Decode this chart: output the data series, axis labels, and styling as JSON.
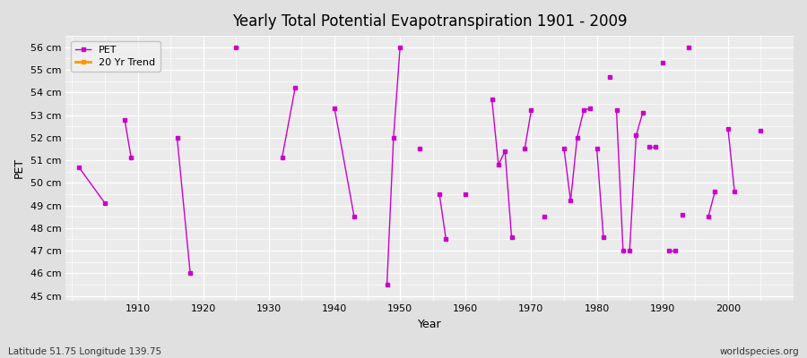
{
  "title": "Yearly Total Potential Evapotranspiration 1901 - 2009",
  "xlabel": "Year",
  "ylabel": "PET",
  "footnote_left": "Latitude 51.75 Longitude 139.75",
  "footnote_right": "worldspecies.org",
  "ylim": [
    44.8,
    56.5
  ],
  "yticks": [
    45,
    46,
    47,
    48,
    49,
    50,
    51,
    52,
    53,
    54,
    55,
    56
  ],
  "ytick_labels": [
    "45 cm",
    "46 cm",
    "47 cm",
    "48 cm",
    "49 cm",
    "50 cm",
    "51 cm",
    "52 cm",
    "53 cm",
    "54 cm",
    "55 cm",
    "56 cm"
  ],
  "xlim": [
    1899,
    2010
  ],
  "xticks": [
    1910,
    1920,
    1930,
    1940,
    1950,
    1960,
    1970,
    1980,
    1990,
    2000
  ],
  "pet_color": "#cc00cc",
  "trend_color": "#ff9900",
  "bg_color": "#e0e0e0",
  "plot_bg": "#ebebeb",
  "grid_color": "#ffffff",
  "legend_bg": "#f0f0f0",
  "pet_data": {
    "years": [
      1901,
      1905,
      1908,
      1909,
      1916,
      1918,
      1925,
      1932,
      1934,
      1940,
      1943,
      1948,
      1949,
      1950,
      1953,
      1956,
      1957,
      1960,
      1964,
      1965,
      1966,
      1967,
      1969,
      1970,
      1972,
      1975,
      1976,
      1977,
      1978,
      1979,
      1980,
      1981,
      1982,
      1983,
      1984,
      1985,
      1986,
      1987,
      1988,
      1989,
      1990,
      1991,
      1992,
      1993,
      1994,
      1997,
      1998,
      2000,
      2001,
      2005
    ],
    "values": [
      50.7,
      49.1,
      52.8,
      51.1,
      52.0,
      46.0,
      56.0,
      51.1,
      54.2,
      53.3,
      48.5,
      45.5,
      52.0,
      56.0,
      51.5,
      49.5,
      47.5,
      49.5,
      53.7,
      50.8,
      51.4,
      47.6,
      51.5,
      53.2,
      48.5,
      51.5,
      49.2,
      52.0,
      53.2,
      53.3,
      51.5,
      47.6,
      54.7,
      53.2,
      47.0,
      47.0,
      52.1,
      53.1,
      51.6,
      51.6,
      55.3,
      47.0,
      47.0,
      48.6,
      56.0,
      48.5,
      49.6,
      52.4,
      49.6,
      52.3
    ],
    "segments": [
      [
        1901,
        1905
      ],
      [
        1908,
        1909
      ],
      [
        1916,
        1918
      ],
      [
        1925
      ],
      [
        1932,
        1934
      ],
      [
        1940,
        1943
      ],
      [
        1948,
        1949,
        1950
      ],
      [
        1953
      ],
      [
        1956,
        1957
      ],
      [
        1960
      ],
      [
        1964,
        1965,
        1966,
        1967
      ],
      [
        1969,
        1970
      ],
      [
        1972
      ],
      [
        1975,
        1976,
        1977,
        1978,
        1979
      ],
      [
        1980,
        1981
      ],
      [
        1982
      ],
      [
        1983,
        1984
      ],
      [
        1985,
        1986,
        1987
      ],
      [
        1988,
        1989
      ],
      [
        1990
      ],
      [
        1991,
        1992
      ],
      [
        1993
      ],
      [
        1994
      ],
      [
        1997,
        1998
      ],
      [
        2000,
        2001
      ],
      [
        2005
      ]
    ]
  }
}
